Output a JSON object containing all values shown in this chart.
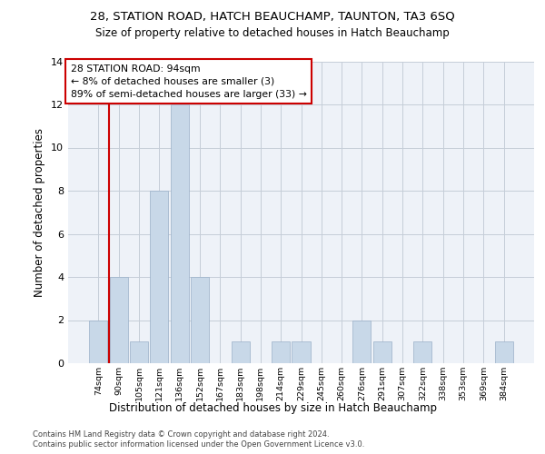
{
  "title1": "28, STATION ROAD, HATCH BEAUCHAMP, TAUNTON, TA3 6SQ",
  "title2": "Size of property relative to detached houses in Hatch Beauchamp",
  "xlabel": "Distribution of detached houses by size in Hatch Beauchamp",
  "ylabel": "Number of detached properties",
  "categories": [
    "74sqm",
    "90sqm",
    "105sqm",
    "121sqm",
    "136sqm",
    "152sqm",
    "167sqm",
    "183sqm",
    "198sqm",
    "214sqm",
    "229sqm",
    "245sqm",
    "260sqm",
    "276sqm",
    "291sqm",
    "307sqm",
    "322sqm",
    "338sqm",
    "353sqm",
    "369sqm",
    "384sqm"
  ],
  "values": [
    2,
    4,
    1,
    8,
    12,
    4,
    0,
    1,
    0,
    1,
    1,
    0,
    0,
    2,
    1,
    0,
    1,
    0,
    0,
    0,
    1
  ],
  "bar_color": "#c8d8e8",
  "bar_edge_color": "#9ab0c8",
  "vline_color": "#cc0000",
  "vline_index": 1,
  "annotation_line1": "28 STATION ROAD: 94sqm",
  "annotation_line2": "← 8% of detached houses are smaller (3)",
  "annotation_line3": "89% of semi-detached houses are larger (33) →",
  "annotation_box_facecolor": "#ffffff",
  "annotation_box_edgecolor": "#cc0000",
  "ylim": [
    0,
    14
  ],
  "yticks": [
    0,
    2,
    4,
    6,
    8,
    10,
    12,
    14
  ],
  "bg_color": "#eef2f8",
  "grid_color": "#c5cdd8",
  "footer1": "Contains HM Land Registry data © Crown copyright and database right 2024.",
  "footer2": "Contains public sector information licensed under the Open Government Licence v3.0."
}
